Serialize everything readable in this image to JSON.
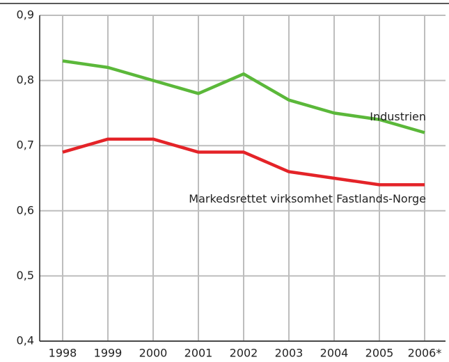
{
  "chart_data": {
    "type": "line",
    "categories": [
      "1998",
      "1999",
      "2000",
      "2001",
      "2002",
      "2003",
      "2004",
      "2005",
      "2006*"
    ],
    "series": [
      {
        "name": "Industrien",
        "color": "#5bb83a",
        "values": [
          0.83,
          0.82,
          0.8,
          0.78,
          0.81,
          0.77,
          0.75,
          0.74,
          0.72
        ]
      },
      {
        "name": "Markedsrettet virksomhet Fastlands-Norge",
        "color": "#e42328",
        "values": [
          0.69,
          0.71,
          0.71,
          0.69,
          0.69,
          0.66,
          0.65,
          0.64,
          0.64
        ]
      }
    ],
    "ylim": [
      0.4,
      0.9
    ],
    "yticks": [
      {
        "value": 0.4,
        "label": "0,4"
      },
      {
        "value": 0.5,
        "label": "0,5"
      },
      {
        "value": 0.6,
        "label": "0,6"
      },
      {
        "value": 0.7,
        "label": "0,7"
      },
      {
        "value": 0.8,
        "label": "0,8"
      },
      {
        "value": 0.9,
        "label": "0,9"
      }
    ],
    "grid": true
  }
}
